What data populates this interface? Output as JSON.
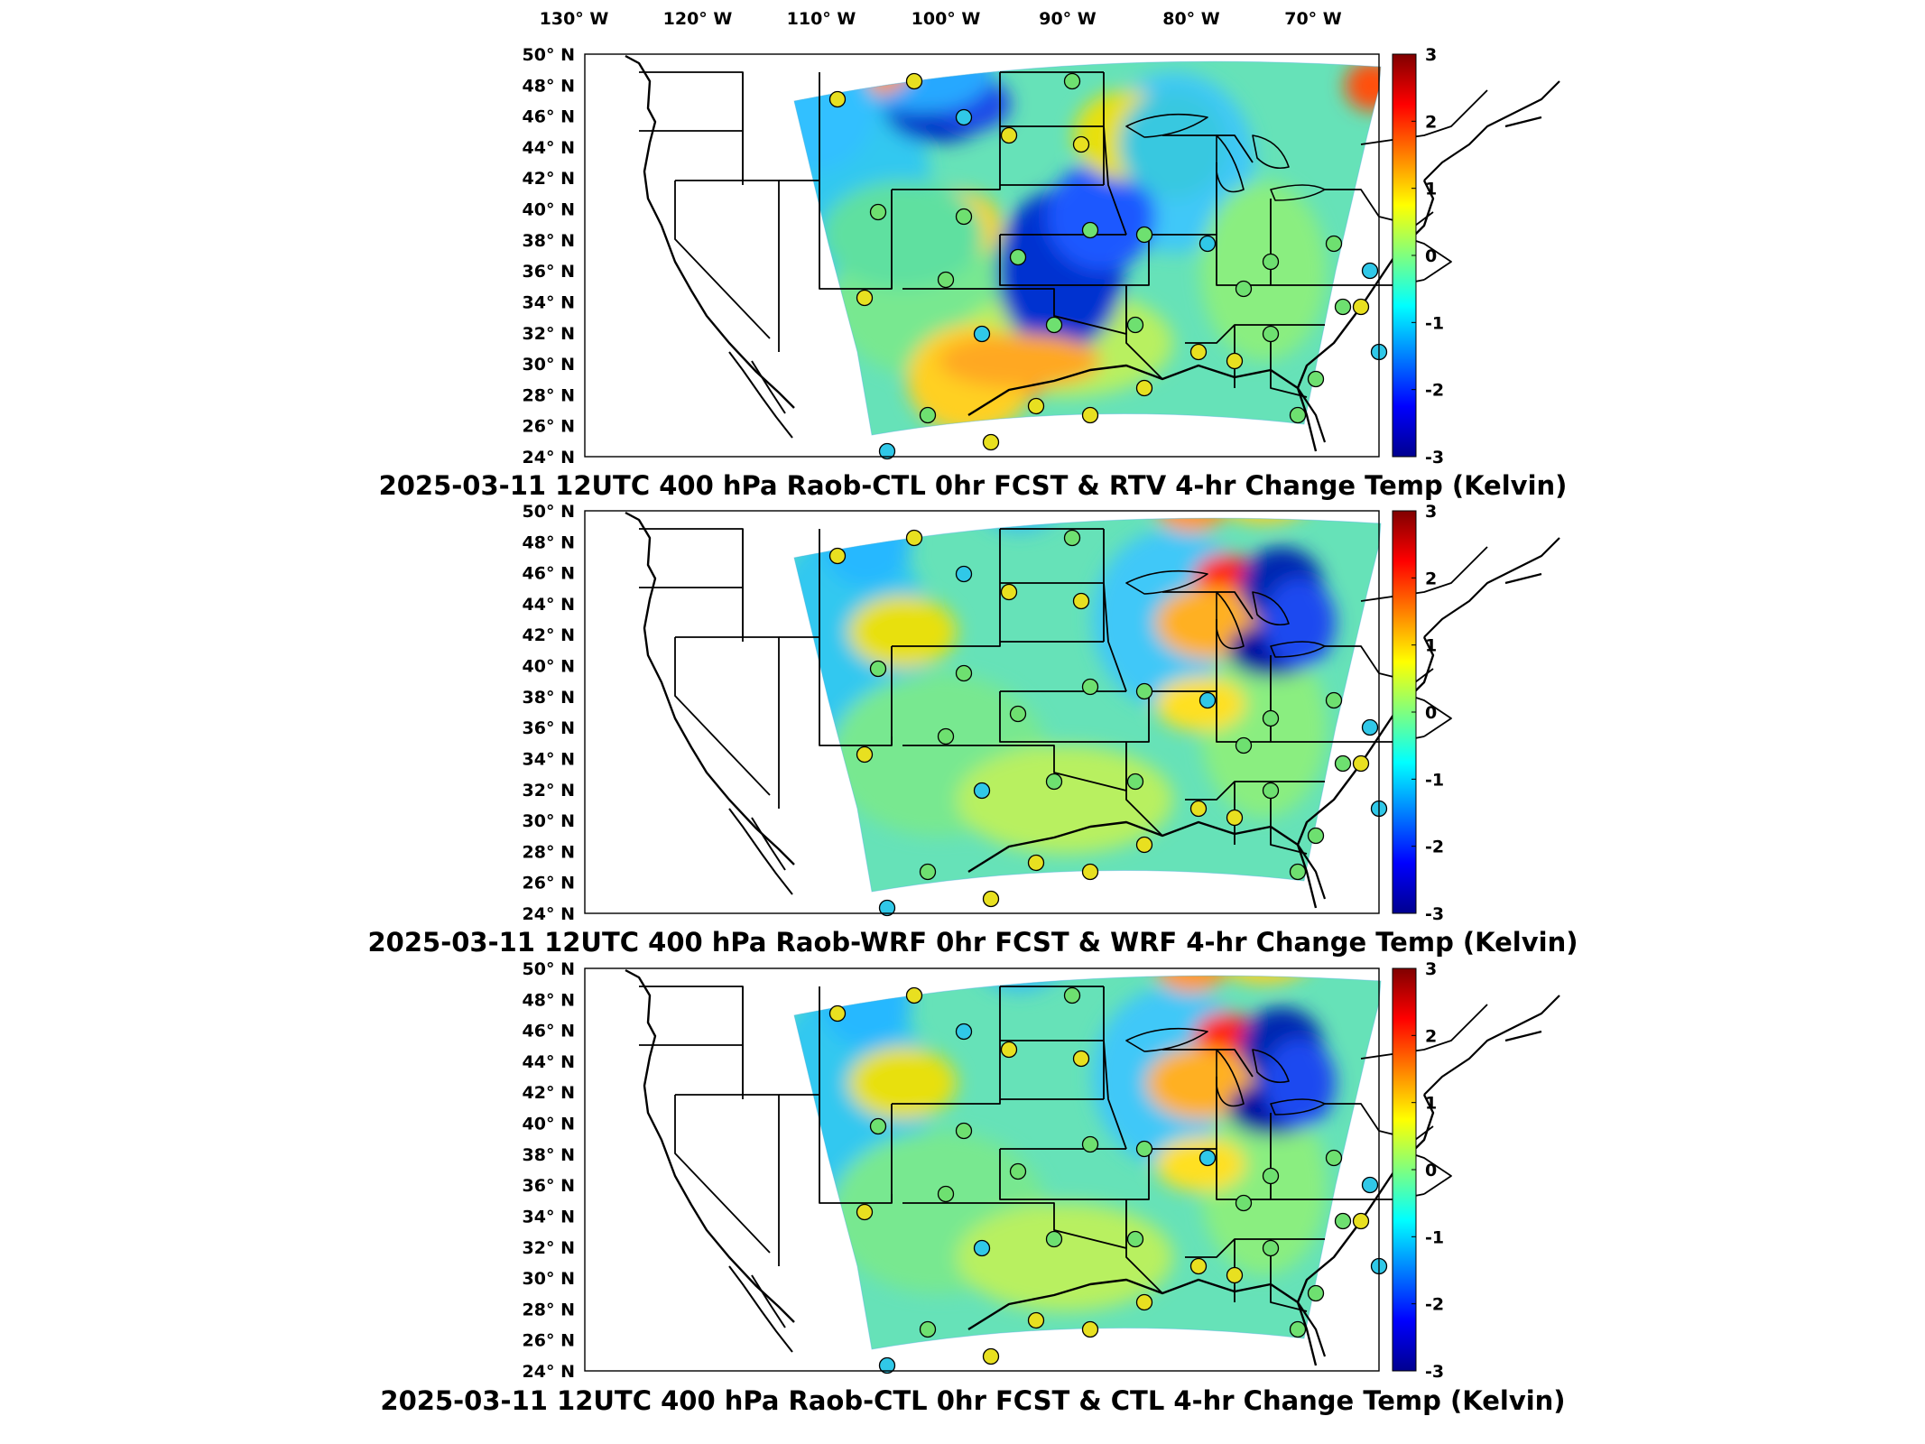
{
  "lon_labels": [
    "130° W",
    "120° W",
    "110° W",
    "100° W",
    "90° W",
    "80° W",
    "70° W"
  ],
  "lat_labels": [
    "50° N",
    "48° N",
    "46° N",
    "44° N",
    "42° N",
    "40° N",
    "38° N",
    "36° N",
    "34° N",
    "32° N",
    "30° N",
    "28° N",
    "26° N",
    "24° N"
  ],
  "colorbar": {
    "ticks": [
      "3",
      "2",
      "1",
      "0",
      "-1",
      "-2",
      "-3"
    ],
    "colormap": "jet",
    "range": [
      -3,
      3
    ]
  },
  "panels": [
    {
      "title": "2025-03-11 12UTC 400 hPa Raob-CTL 0hr FCST & RTV 4-hr Change Temp (Kelvin)"
    },
    {
      "title": "2025-03-11 12UTC 400 hPa Raob-WRF 0hr FCST & WRF 4-hr Change Temp (Kelvin)"
    },
    {
      "title": "2025-03-11 12UTC 400 hPa Raob-CTL 0hr FCST & CTL 4-hr Change Temp (Kelvin)"
    }
  ],
  "colors": {
    "field_cold": "#00008f",
    "field_neutral": "#7fff7f",
    "field_warm": "#800000",
    "borders": "#000000"
  }
}
